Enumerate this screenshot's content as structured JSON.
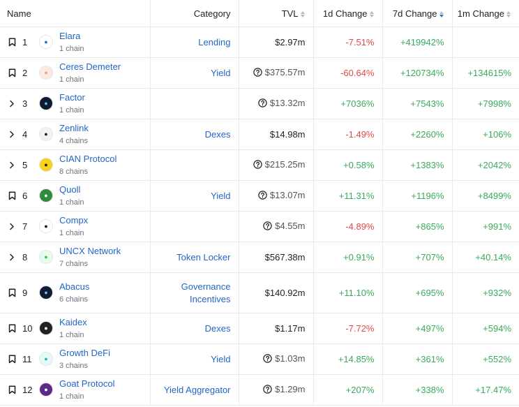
{
  "headers": {
    "name": "Name",
    "category": "Category",
    "tvl": "TVL",
    "d1": "1d Change",
    "d7": "7d Change",
    "m1": "1m Change"
  },
  "rows": [
    {
      "rank": "1",
      "name": "Elara",
      "chains": "1 chain",
      "category": "Lending",
      "tvl": "$2.97m",
      "d1": "-7.51%",
      "d7": "+419942%",
      "m1": "",
      "lead": "bookmark",
      "logo": "elara-logo",
      "logo_bg": "#ffffff",
      "logo_fg": "#2a6fd8",
      "tvl_q": false
    },
    {
      "rank": "2",
      "name": "Ceres Demeter",
      "chains": "1 chain",
      "category": "Yield",
      "tvl": "$375.57m",
      "d1": "-60.64%",
      "d7": "+120734%",
      "m1": "+134615%",
      "lead": "bookmark",
      "logo": "ceres-demeter-logo",
      "logo_bg": "#fbe9e2",
      "logo_fg": "#e0a58a",
      "tvl_q": true
    },
    {
      "rank": "3",
      "name": "Factor",
      "chains": "1 chain",
      "category": "",
      "tvl": "$13.32m",
      "d1": "+7036%",
      "d7": "+7543%",
      "m1": "+7998%",
      "lead": "chevron",
      "logo": "factor-logo",
      "logo_bg": "#0f1a2e",
      "logo_fg": "#4cc3ff",
      "tvl_q": true
    },
    {
      "rank": "4",
      "name": "Zenlink",
      "chains": "4 chains",
      "category": "Dexes",
      "tvl": "$14.98m",
      "d1": "-1.49%",
      "d7": "+2260%",
      "m1": "+106%",
      "lead": "chevron",
      "logo": "zenlink-logo",
      "logo_bg": "#f2f2f2",
      "logo_fg": "#1f1f1f",
      "tvl_q": false
    },
    {
      "rank": "5",
      "name": "CIAN Protocol",
      "chains": "8 chains",
      "category": "",
      "tvl": "$215.25m",
      "d1": "+0.58%",
      "d7": "+1383%",
      "m1": "+2042%",
      "lead": "chevron",
      "logo": "cian-logo",
      "logo_bg": "#f7d11a",
      "logo_fg": "#1f1f1f",
      "tvl_q": true
    },
    {
      "rank": "6",
      "name": "Quoll",
      "chains": "1 chain",
      "category": "Yield",
      "tvl": "$13.07m",
      "d1": "+11.31%",
      "d7": "+1196%",
      "m1": "+8499%",
      "lead": "bookmark",
      "logo": "quoll-logo",
      "logo_bg": "#2f8c3c",
      "logo_fg": "#ffffff",
      "tvl_q": true
    },
    {
      "rank": "7",
      "name": "Compx",
      "chains": "1 chain",
      "category": "",
      "tvl": "$4.55m",
      "d1": "-4.89%",
      "d7": "+865%",
      "m1": "+991%",
      "lead": "chevron",
      "logo": "compx-logo",
      "logo_bg": "#ffffff",
      "logo_fg": "#111111",
      "tvl_q": true
    },
    {
      "rank": "8",
      "name": "UNCX Network",
      "chains": "7 chains",
      "category": "Token Locker",
      "tvl": "$567.38m",
      "d1": "+0.91%",
      "d7": "+707%",
      "m1": "+40.14%",
      "lead": "chevron",
      "logo": "uncx-logo",
      "logo_bg": "#e9fbe9",
      "logo_fg": "#39c35b",
      "tvl_q": false
    },
    {
      "rank": "9",
      "name": "Abacus",
      "chains": "6 chains",
      "category": "Governance Incentives",
      "tvl": "$140.92m",
      "d1": "+11.10%",
      "d7": "+695%",
      "m1": "+932%",
      "lead": "bookmark",
      "logo": "abacus-logo",
      "logo_bg": "#101d33",
      "logo_fg": "#7fb3ff",
      "tvl_q": false,
      "tall": true
    },
    {
      "rank": "10",
      "name": "Kaidex",
      "chains": "1 chain",
      "category": "Dexes",
      "tvl": "$1.17m",
      "d1": "-7.72%",
      "d7": "+497%",
      "m1": "+594%",
      "lead": "bookmark",
      "logo": "kaidex-logo",
      "logo_bg": "#222222",
      "logo_fg": "#ffffff",
      "tvl_q": false
    },
    {
      "rank": "11",
      "name": "Growth DeFi",
      "chains": "3 chains",
      "category": "Yield",
      "tvl": "$1.03m",
      "d1": "+14.85%",
      "d7": "+361%",
      "m1": "+552%",
      "lead": "bookmark",
      "logo": "growth-defi-logo",
      "logo_bg": "#e7f9f6",
      "logo_fg": "#2fb8a8",
      "tvl_q": true
    },
    {
      "rank": "12",
      "name": "Goat Protocol",
      "chains": "1 chain",
      "category": "Yield Aggregator",
      "tvl": "$1.29m",
      "d1": "+207%",
      "d7": "+338%",
      "m1": "+17.47%",
      "lead": "bookmark",
      "logo": "goat-protocol-logo",
      "logo_bg": "#5b2a86",
      "logo_fg": "#ffffff",
      "tvl_q": true
    }
  ],
  "colors": {
    "link": "#2266c7",
    "negative": "#e24949",
    "positive": "#3aaa5c",
    "sort_active": "#2172e5"
  }
}
